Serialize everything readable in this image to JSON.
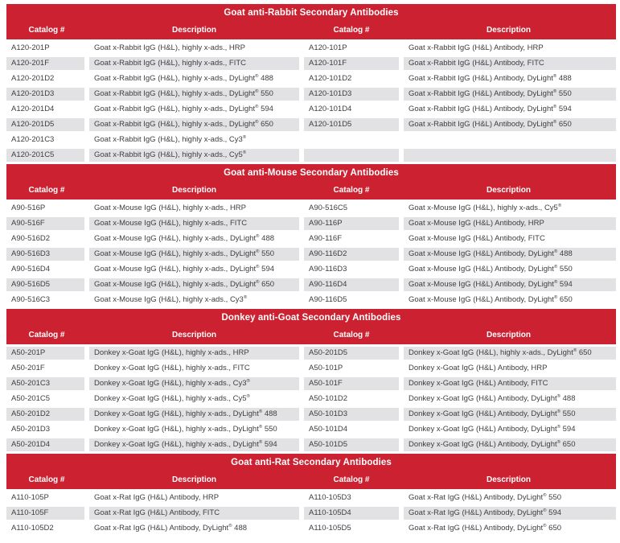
{
  "theme": {
    "header_red": "#CB2130",
    "row_alt_gray": "#E2E2E4",
    "header_text_color": "#FFFFFF",
    "body_text_color": "#3E3E40"
  },
  "columns": [
    "Catalog #",
    "Description",
    "Catalog #",
    "Description"
  ],
  "sections": [
    {
      "title": "Goat anti-Rabbit Secondary Antibodies",
      "rows": [
        [
          "A120-201P",
          "Goat x-Rabbit IgG (H&L), highly x-ads., HRP",
          "A120-101P",
          "Goat x-Rabbit IgG (H&L) Antibody, HRP"
        ],
        [
          "A120-201F",
          "Goat x-Rabbit IgG (H&L), highly x-ads., FITC",
          "A120-101F",
          "Goat x-Rabbit IgG (H&L) Antibody, FITC"
        ],
        [
          "A120-201D2",
          "Goat x-Rabbit IgG (H&L), highly x-ads., DyLight® 488",
          "A120-101D2",
          "Goat x-Rabbit IgG (H&L) Antibody, DyLight® 488"
        ],
        [
          "A120-201D3",
          "Goat x-Rabbit IgG (H&L), highly x-ads., DyLight® 550",
          "A120-101D3",
          "Goat x-Rabbit IgG (H&L) Antibody, DyLight® 550"
        ],
        [
          "A120-201D4",
          "Goat x-Rabbit IgG (H&L), highly x-ads., DyLight® 594",
          "A120-101D4",
          "Goat x-Rabbit IgG (H&L) Antibody, DyLight® 594"
        ],
        [
          "A120-201D5",
          "Goat x-Rabbit IgG (H&L), highly x-ads., DyLight® 650",
          "A120-101D5",
          "Goat x-Rabbit IgG (H&L) Antibody, DyLight® 650"
        ],
        [
          "A120-201C3",
          "Goat x-Rabbit IgG (H&L), highly x-ads., Cy3®",
          "",
          ""
        ],
        [
          "A120-201C5",
          "Goat x-Rabbit IgG (H&L), highly x-ads., Cy5®",
          "",
          ""
        ]
      ]
    },
    {
      "title": "Goat anti-Mouse Secondary Antibodies",
      "rows": [
        [
          "A90-516P",
          "Goat x-Mouse IgG (H&L), highly x-ads., HRP",
          "A90-516C5",
          "Goat x-Mouse IgG (H&L), highly x-ads., Cy5®"
        ],
        [
          "A90-516F",
          "Goat x-Mouse IgG (H&L), highly x-ads., FITC",
          "A90-116P",
          "Goat x-Mouse IgG (H&L) Antibody, HRP"
        ],
        [
          "A90-516D2",
          "Goat x-Mouse IgG (H&L), highly x-ads., DyLight® 488",
          "A90-116F",
          "Goat x-Mouse IgG (H&L) Antibody, FITC"
        ],
        [
          "A90-516D3",
          "Goat x-Mouse IgG (H&L), highly x-ads., DyLight® 550",
          "A90-116D2",
          "Goat x-Mouse IgG (H&L) Antibody, DyLight® 488"
        ],
        [
          "A90-516D4",
          "Goat x-Mouse IgG (H&L), highly x-ads., DyLight® 594",
          "A90-116D3",
          "Goat x-Mouse IgG (H&L) Antibody, DyLight® 550"
        ],
        [
          "A90-516D5",
          "Goat x-Mouse IgG (H&L), highly x-ads., DyLight® 650",
          "A90-116D4",
          "Goat x-Mouse IgG (H&L) Antibody, DyLight® 594"
        ],
        [
          "A90-516C3",
          "Goat x-Mouse IgG (H&L), highly x-ads., Cy3®",
          "A90-116D5",
          "Goat x-Mouse IgG (H&L) Antibody, DyLight® 650"
        ]
      ]
    },
    {
      "title": "Donkey anti-Goat Secondary Antibodies",
      "rows": [
        [
          "A50-201P",
          "Donkey x-Goat IgG (H&L), highly x-ads., HRP",
          "A50-201D5",
          "Donkey x-Goat IgG (H&L), highly x-ads., DyLight® 650"
        ],
        [
          "A50-201F",
          "Donkey x-Goat IgG (H&L), highly x-ads., FITC",
          "A50-101P",
          "Donkey x-Goat IgG (H&L) Antibody, HRP"
        ],
        [
          "A50-201C3",
          "Donkey x-Goat IgG (H&L), highly x-ads., Cy3®",
          "A50-101F",
          "Donkey x-Goat IgG (H&L) Antibody, FITC"
        ],
        [
          "A50-201C5",
          "Donkey x-Goat IgG (H&L), highly x-ads., Cy5®",
          "A50-101D2",
          "Donkey x-Goat IgG (H&L) Antibody, DyLight® 488"
        ],
        [
          "A50-201D2",
          "Donkey x-Goat IgG (H&L), highly x-ads., DyLight® 488",
          "A50-101D3",
          "Donkey x-Goat IgG (H&L) Antibody, DyLight® 550"
        ],
        [
          "A50-201D3",
          "Donkey x-Goat IgG (H&L), highly x-ads., DyLight® 550",
          "A50-101D4",
          "Donkey x-Goat IgG (H&L) Antibody, DyLight® 594"
        ],
        [
          "A50-201D4",
          "Donkey x-Goat IgG (H&L), highly x-ads., DyLight® 594",
          "A50-101D5",
          "Donkey x-Goat IgG (H&L) Antibody, DyLight® 650"
        ]
      ]
    },
    {
      "title": "Goat anti-Rat Secondary Antibodies",
      "rows": [
        [
          "A110-105P",
          "Goat x-Rat IgG (H&L) Antibody, HRP",
          "A110-105D3",
          "Goat x-Rat IgG (H&L) Antibody, DyLight® 550"
        ],
        [
          "A110-105F",
          "Goat x-Rat IgG (H&L) Antibody, FITC",
          "A110-105D4",
          "Goat x-Rat IgG (H&L) Antibody, DyLight® 594"
        ],
        [
          "A110-105D2",
          "Goat x-Rat IgG (H&L) Antibody, DyLight® 488",
          "A110-105D5",
          "Goat x-Rat IgG (H&L) Antibody, DyLight® 650"
        ]
      ]
    }
  ]
}
